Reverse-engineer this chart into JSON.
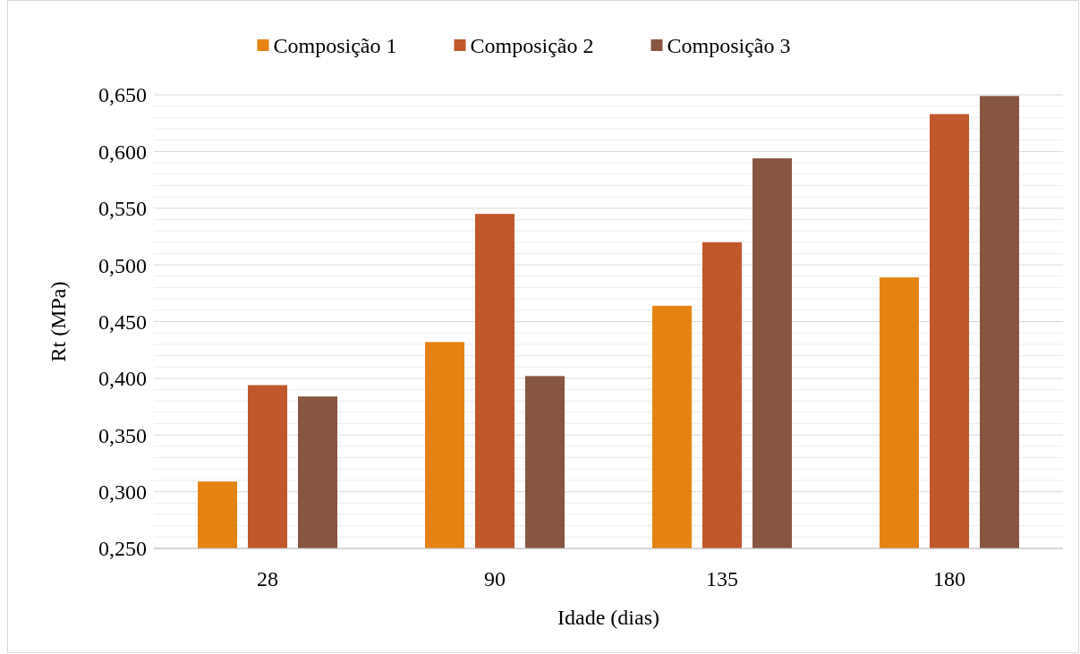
{
  "chart_data": {
    "type": "bar",
    "xlabel": "Idade (dias)",
    "ylabel": "Rt (MPa)",
    "categories": [
      "28",
      "90",
      "135",
      "180"
    ],
    "series": [
      {
        "name": "Composição 1",
        "color": "#e58312",
        "values": [
          0.309,
          0.432,
          0.464,
          0.489
        ]
      },
      {
        "name": "Composição 2",
        "color": "#c0582c",
        "values": [
          0.394,
          0.545,
          0.52,
          0.633
        ]
      },
      {
        "name": "Composição 3",
        "color": "#875641",
        "values": [
          0.384,
          0.402,
          0.594,
          0.649
        ]
      }
    ],
    "ylim": [
      0.25,
      0.65
    ],
    "yticks": [
      {
        "value": 0.25,
        "label": "0,250"
      },
      {
        "value": 0.26,
        "label": null
      },
      {
        "value": 0.27,
        "label": null
      },
      {
        "value": 0.28,
        "label": null
      },
      {
        "value": 0.29,
        "label": null
      },
      {
        "value": 0.3,
        "label": "0,300"
      },
      {
        "value": 0.31,
        "label": null
      },
      {
        "value": 0.32,
        "label": null
      },
      {
        "value": 0.33,
        "label": null
      },
      {
        "value": 0.34,
        "label": null
      },
      {
        "value": 0.35,
        "label": "0,350"
      },
      {
        "value": 0.36,
        "label": null
      },
      {
        "value": 0.37,
        "label": null
      },
      {
        "value": 0.38,
        "label": null
      },
      {
        "value": 0.39,
        "label": null
      },
      {
        "value": 0.4,
        "label": "0,400"
      },
      {
        "value": 0.41,
        "label": null
      },
      {
        "value": 0.42,
        "label": null
      },
      {
        "value": 0.43,
        "label": null
      },
      {
        "value": 0.44,
        "label": null
      },
      {
        "value": 0.45,
        "label": "0,450"
      },
      {
        "value": 0.46,
        "label": null
      },
      {
        "value": 0.47,
        "label": null
      },
      {
        "value": 0.48,
        "label": null
      },
      {
        "value": 0.49,
        "label": null
      },
      {
        "value": 0.5,
        "label": "0,500"
      },
      {
        "value": 0.51,
        "label": null
      },
      {
        "value": 0.52,
        "label": null
      },
      {
        "value": 0.53,
        "label": null
      },
      {
        "value": 0.54,
        "label": null
      },
      {
        "value": 0.55,
        "label": "0,550"
      },
      {
        "value": 0.56,
        "label": null
      },
      {
        "value": 0.57,
        "label": null
      },
      {
        "value": 0.58,
        "label": null
      },
      {
        "value": 0.59,
        "label": null
      },
      {
        "value": 0.6,
        "label": "0,600"
      },
      {
        "value": 0.61,
        "label": null
      },
      {
        "value": 0.62,
        "label": null
      },
      {
        "value": 0.63,
        "label": null
      },
      {
        "value": 0.64,
        "label": null
      },
      {
        "value": 0.65,
        "label": "0,650"
      }
    ],
    "grid": "y",
    "legend": "top"
  }
}
